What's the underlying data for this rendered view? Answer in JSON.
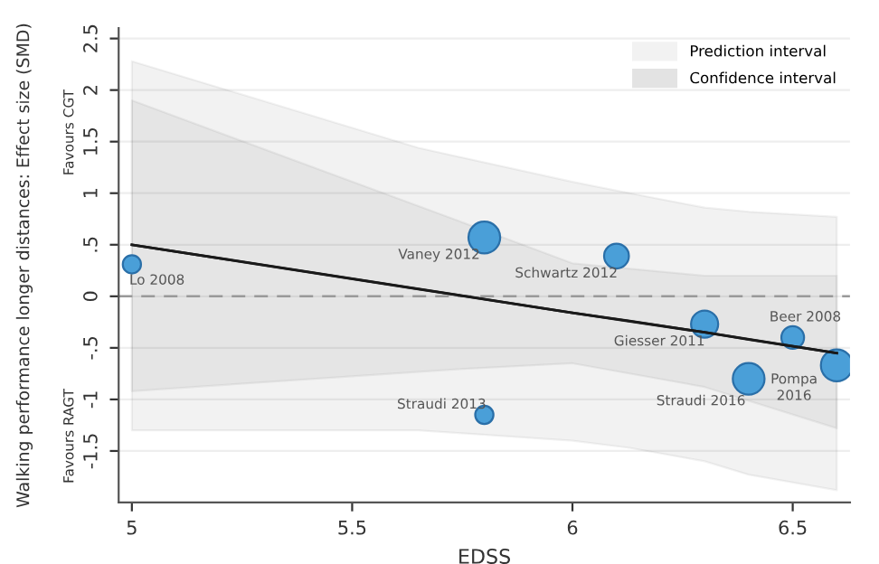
{
  "chart_data": {
    "type": "bubble",
    "xlabel": "EDSS",
    "ylabel": "Walking performance longer distances: Effect size (SMD)",
    "xlim": [
      4.97,
      6.63
    ],
    "xticks": [
      5,
      5.5,
      6,
      6.5
    ],
    "ylim": [
      -2,
      2.6
    ],
    "yticks": [
      2.5,
      2,
      1.5,
      1,
      {
        "value": 0.5,
        "label": ".5"
      },
      0,
      {
        "value": -0.5,
        "label": "-.5"
      },
      -1,
      -1.5
    ],
    "grid": "y",
    "legend": "top right",
    "series": [
      {
        "type": "line",
        "name": "Prediction interval",
        "color": "#1a1a1a",
        "x": [
          5.0,
          5.65,
          6.0,
          6.13,
          6.3,
          6.4,
          6.6
        ],
        "values": [
          0.5,
          0.07,
          -0.16,
          -0.24,
          -0.35,
          -0.42,
          -0.55
        ],
        "lower": [
          -1.3,
          -1.3,
          -1.4,
          -1.47,
          -1.6,
          -1.73,
          -1.88
        ],
        "upper": [
          2.28,
          1.44,
          1.11,
          1.0,
          0.86,
          0.82,
          0.77
        ]
      },
      {
        "type": "line",
        "name": "Confidence interval",
        "color": "#1a1a1a",
        "x": [
          5.0,
          5.73,
          6.0,
          6.3,
          6.6
        ],
        "values": [
          0.5,
          0.02,
          -0.16,
          -0.35,
          -0.55
        ],
        "lower": [
          -0.92,
          -0.71,
          -0.65,
          -0.88,
          -1.28
        ],
        "upper": [
          1.9,
          0.75,
          0.32,
          0.2,
          0.2
        ]
      },
      {
        "color": "#4a9fd8",
        "x": [
          5.0,
          5.8,
          6.1,
          6.3,
          6.5,
          6.6,
          6.4,
          5.8
        ],
        "values": [
          0.31,
          0.57,
          0.39,
          -0.27,
          -0.4,
          -0.67,
          -0.8,
          -1.15
        ],
        "sizes": [
          0.33,
          1,
          0.61,
          0.73,
          0.51,
          1,
          1,
          0.33
        ]
      }
    ],
    "ref_lines": [
      {
        "axis": "y",
        "value": 0,
        "color": "#999999",
        "line_style": "dashed"
      }
    ],
    "annotations": [
      "Favours CGT",
      "Favours RAGT",
      {
        "text": "Lo 2008",
        "x": 5.0,
        "y": 0.31
      },
      {
        "text": "Vaney 2012",
        "x": 5.8,
        "y": 0.57
      },
      {
        "text": "Schwartz 2012",
        "x": 6.1,
        "y": 0.39
      },
      {
        "text": "Giesser 2011",
        "x": 6.3,
        "y": -0.27
      },
      {
        "text": "Beer 2008",
        "x": 6.5,
        "y": -0.4
      },
      {
        "text": "Pompa\n2016",
        "x": 6.6,
        "y": -0.67
      },
      {
        "text": "Straudi 2016",
        "x": 6.4,
        "y": -0.8
      },
      {
        "text": "Straudi 2013",
        "x": 5.8,
        "y": -1.15
      }
    ]
  }
}
